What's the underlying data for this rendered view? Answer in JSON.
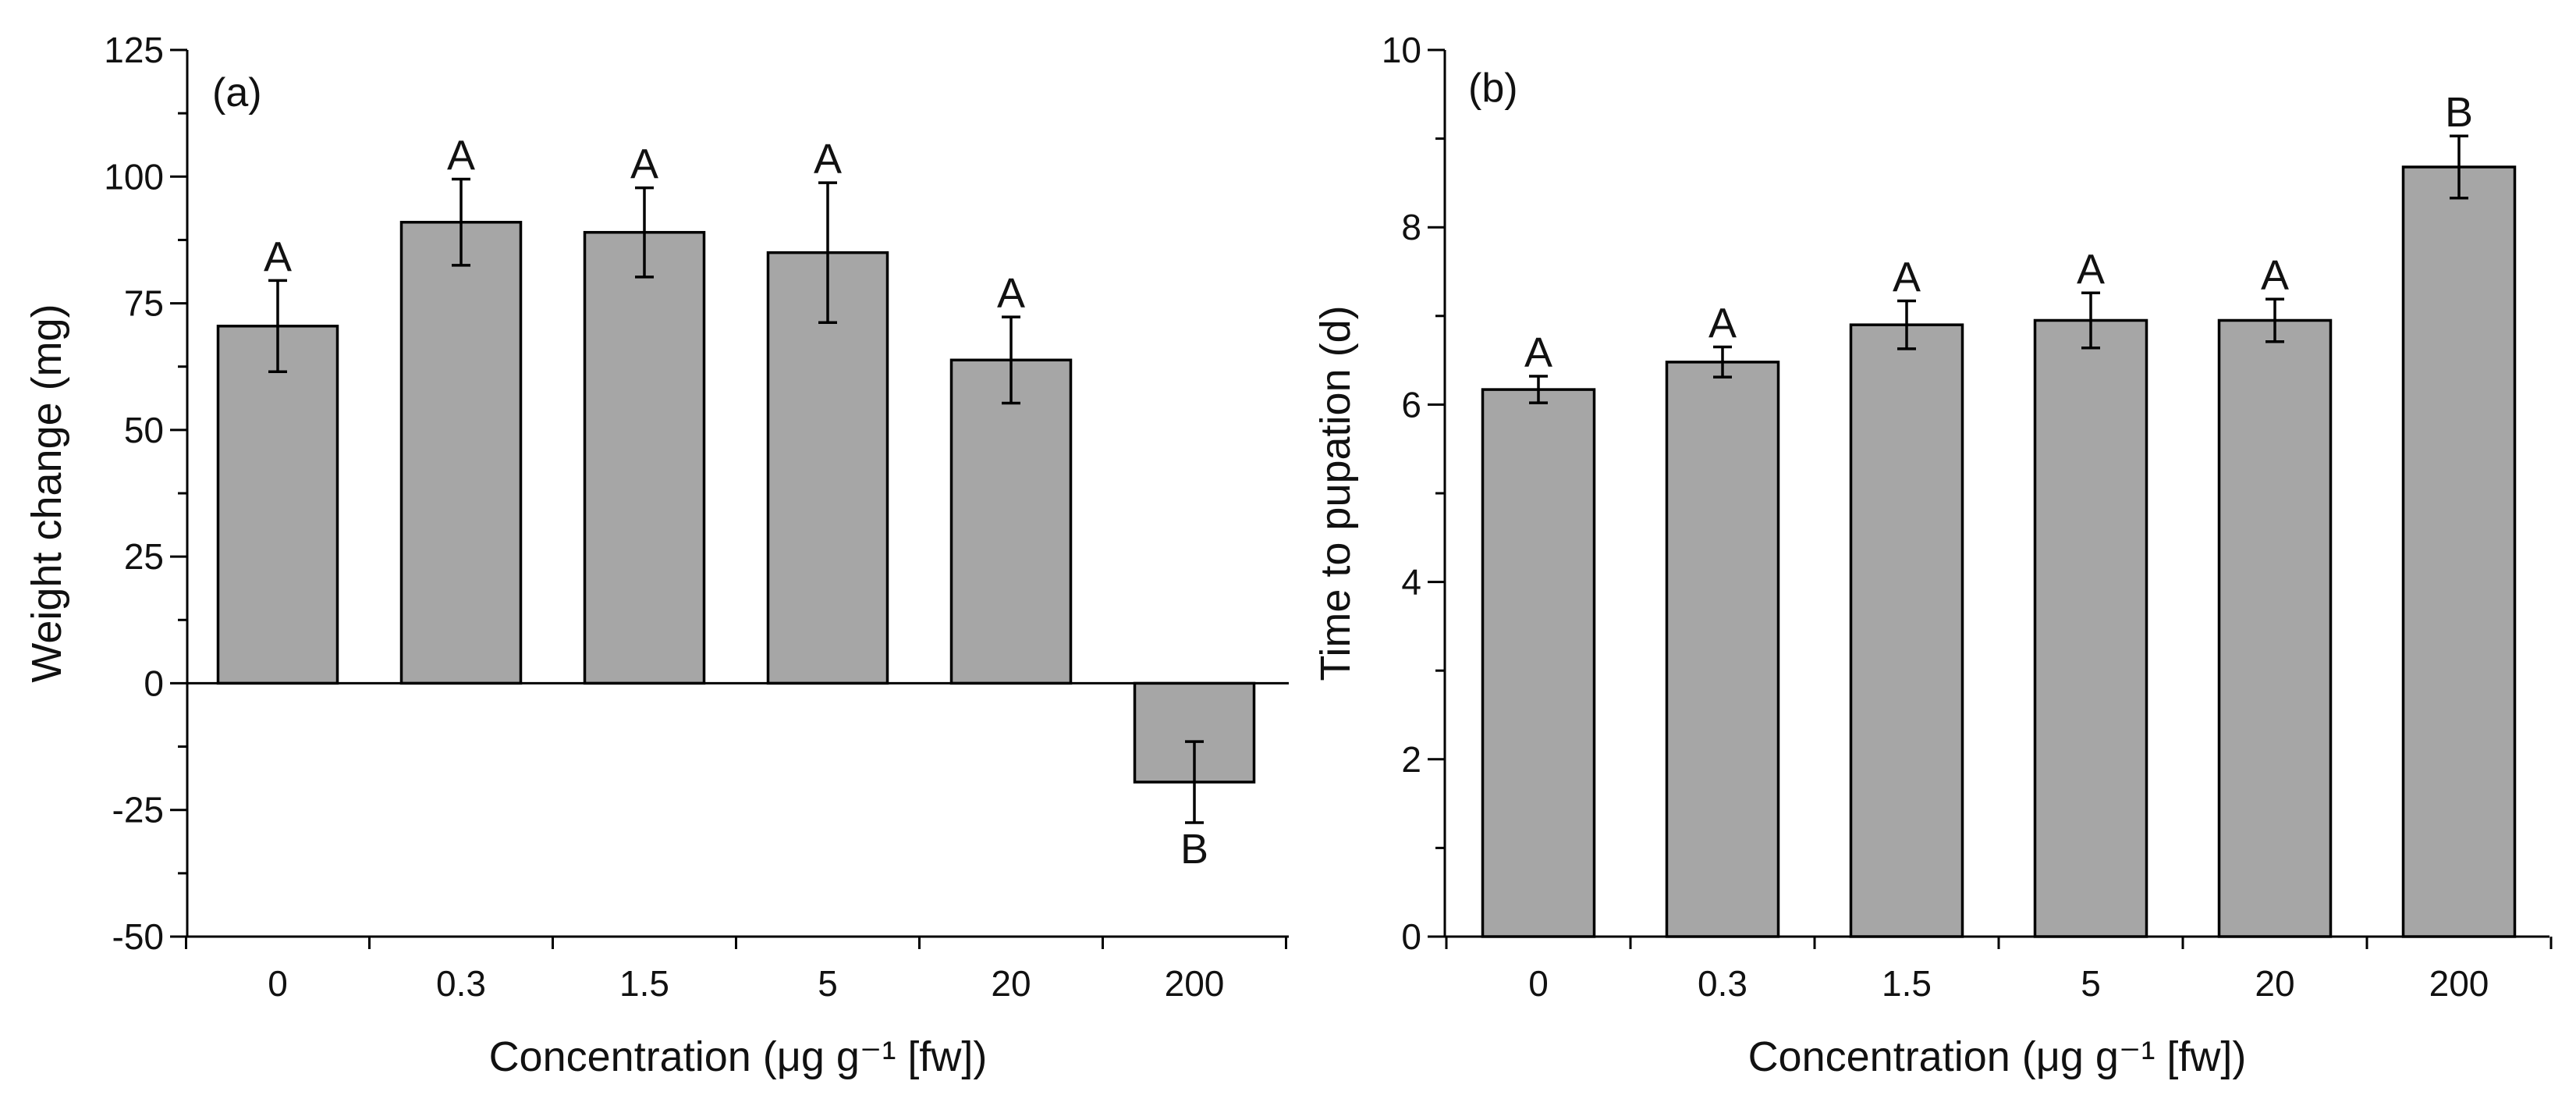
{
  "colors": {
    "bar_fill": "#a6a6a6",
    "axis": "#000000"
  },
  "chart_data": [
    {
      "type": "bar",
      "panel_label": "(a)",
      "categories": [
        "0",
        "0.3",
        "1.5",
        "5",
        "20",
        "200"
      ],
      "values": [
        70.5,
        91,
        89,
        85,
        63.8,
        -19.5
      ],
      "error": [
        9,
        8.5,
        8.8,
        13.8,
        8.5,
        8
      ],
      "significance_letters": [
        "A",
        "A",
        "A",
        "A",
        "A",
        "B"
      ],
      "xlabel": "Concentration (μg g⁻¹ [fw])",
      "ylabel": "Weight change (mg)",
      "ylim": [
        -50,
        125
      ],
      "yticks": [
        -50,
        -25,
        0,
        25,
        50,
        75,
        100,
        125
      ],
      "ytick_labels": [
        "-50",
        "-25",
        "0",
        "25",
        "50",
        "75",
        "100",
        "125"
      ],
      "ymid_step": 12.5
    },
    {
      "type": "bar",
      "panel_label": "(b)",
      "categories": [
        "0",
        "0.3",
        "1.5",
        "5",
        "20",
        "200"
      ],
      "values": [
        6.17,
        6.48,
        6.9,
        6.95,
        6.95,
        8.68
      ],
      "error": [
        0.15,
        0.17,
        0.27,
        0.31,
        0.24,
        0.35
      ],
      "significance_letters": [
        "A",
        "A",
        "A",
        "A",
        "A",
        "B"
      ],
      "xlabel": "Concentration (μg g⁻¹ [fw])",
      "ylabel": "Time to pupation (d)",
      "ylim": [
        0,
        10
      ],
      "yticks": [
        0,
        2,
        4,
        6,
        8,
        10
      ],
      "ytick_labels": [
        "0",
        "2",
        "4",
        "6",
        "8",
        "10"
      ],
      "ymid_step": 1
    }
  ]
}
